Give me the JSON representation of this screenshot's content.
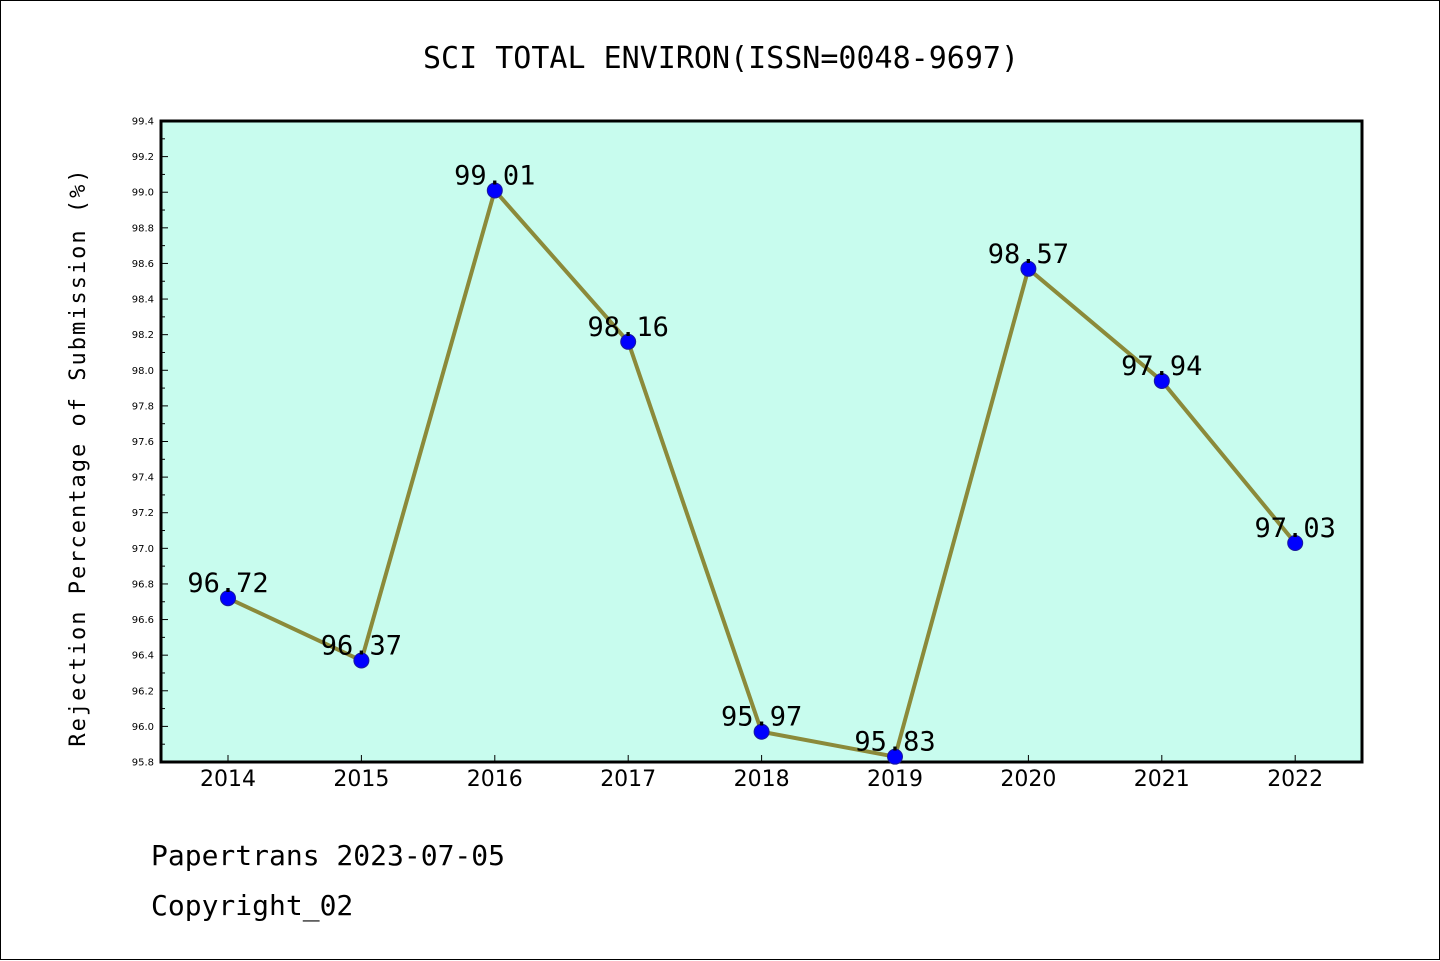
{
  "chart_data": {
    "type": "line",
    "title": "SCI TOTAL ENVIRON(ISSN=0048-9697)",
    "xlabel": "",
    "ylabel": "Rejection Percentage of Submission (%)",
    "categories": [
      "2014",
      "2015",
      "2016",
      "2017",
      "2018",
      "2019",
      "2020",
      "2021",
      "2022"
    ],
    "series": [
      {
        "values": [
          96.72,
          96.37,
          99.01,
          98.16,
          95.97,
          95.83,
          98.57,
          97.94,
          97.03
        ],
        "labels": [
          "96.72",
          "96.37",
          "99.01",
          "98.16",
          "95.97",
          "95.83",
          "98.57",
          "97.94",
          "97.03"
        ]
      }
    ],
    "ylim": [
      95.8,
      99.4
    ],
    "yticks": [
      "95.8",
      "96.0",
      "96.2",
      "96.4",
      "96.6",
      "96.8",
      "97.0",
      "97.2",
      "97.4",
      "97.6",
      "97.8",
      "98.0",
      "98.2",
      "98.4",
      "98.6",
      "98.8",
      "99.0",
      "99.2",
      "99.4"
    ],
    "grid": false,
    "colors": {
      "plot_background": "#c8fcee",
      "line": "#8b8a3a",
      "marker": "#0000ff",
      "axes": "#000000"
    }
  },
  "footer": {
    "line1": "Papertrans 2023-07-05",
    "line2": "Copyright_02"
  }
}
